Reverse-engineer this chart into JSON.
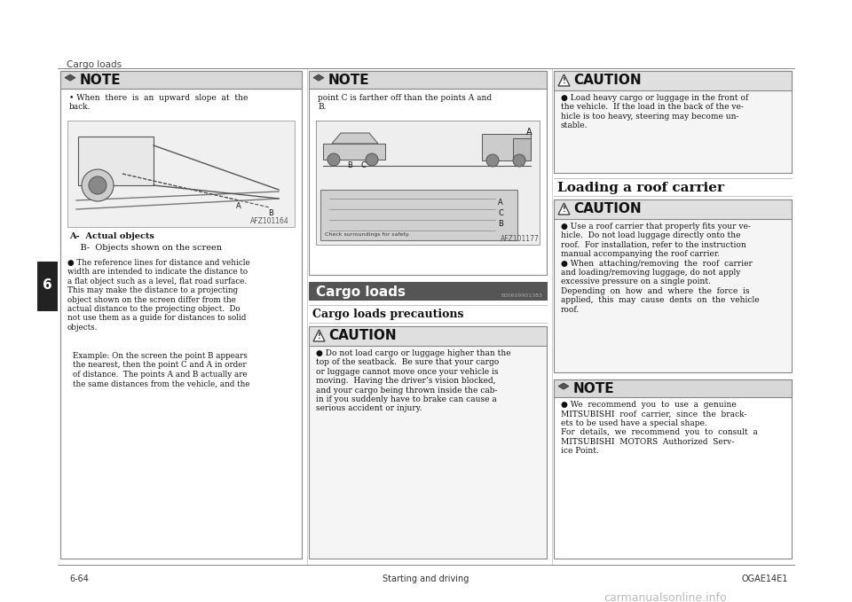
{
  "page_bg": "#ffffff",
  "header_text": "Cargo loads",
  "footer_left": "6-64",
  "footer_center": "Starting and driving",
  "footer_right": "OGAE14E1",
  "tab_label": "6",
  "col1_note_bullet": "When  there  is  an  upward  slope  at  the\nback.",
  "col1_caption_a": "A-  Actual objects",
  "col1_caption_b": "    B-  Objects shown on the screen",
  "col1_body1": "The reference lines for distance and vehicle\nwidth are intended to indicate the distance to\na flat object such as a level, flat road surface.\nThis may make the distance to a projecting\nobject shown on the screen differ from the\nactual distance to the projecting object.  Do\nnot use them as a guide for distances to solid\nobjects.",
  "col1_body2": "Example: On the screen the point B appears\nthe nearest, then the point C and A in order\nof distance.  The points A and B actually are\nthe same distances from the vehicle, and the",
  "col1_img_label": "AFZ101164",
  "col2_note_text": "point C is farther off than the points A and\nB.",
  "col2_img_label": "AFZ101177",
  "col2_cargo_title": "Cargo loads",
  "col2_cargo_id": "E00609901383",
  "col2_cargo_precautions": "Cargo loads precautions",
  "col2_caution_body": "Do not load cargo or luggage higher than the\ntop of the seatback.  Be sure that your cargo\nor luggage cannot move once your vehicle is\nmoving.  Having the driver’s vision blocked,\nand your cargo being thrown inside the cab-\nin if you suddenly have to brake can cause a\nserious accident or injury.",
  "col3_caution1_body": "Load heavy cargo or luggage in the front of\nthe vehicle.  If the load in the back of the ve-\nhicle is too heavy, steering may become un-\nstable.",
  "col3_roof_title": "Loading a roof carrier",
  "col3_caution2_body1": "Use a roof carrier that properly fits your ve-\nhicle.  Do not load luggage directly onto the\nroof.  For installation, refer to the instruction\nmanual accompanying the roof carrier.",
  "col3_caution2_body2": "When  attaching/removing  the  roof  carrier\nand loading/removing luggage, do not apply\nexcessive pressure on a single point.\nDepending  on  how  and  where  the  force  is\napplied,  this  may  cause  dents  on  the  vehicle\nroof.",
  "col3_note_body": "We  recommend  you  to  use  a  genuine\nMITSUBISHI  roof  carrier,  since  the  brack-\nets to be used have a special shape.\nFor  details,  we  recommend  you  to  consult  a\nMITSUBISHI  MOTORS  Authorized  Serv-\nice Point."
}
